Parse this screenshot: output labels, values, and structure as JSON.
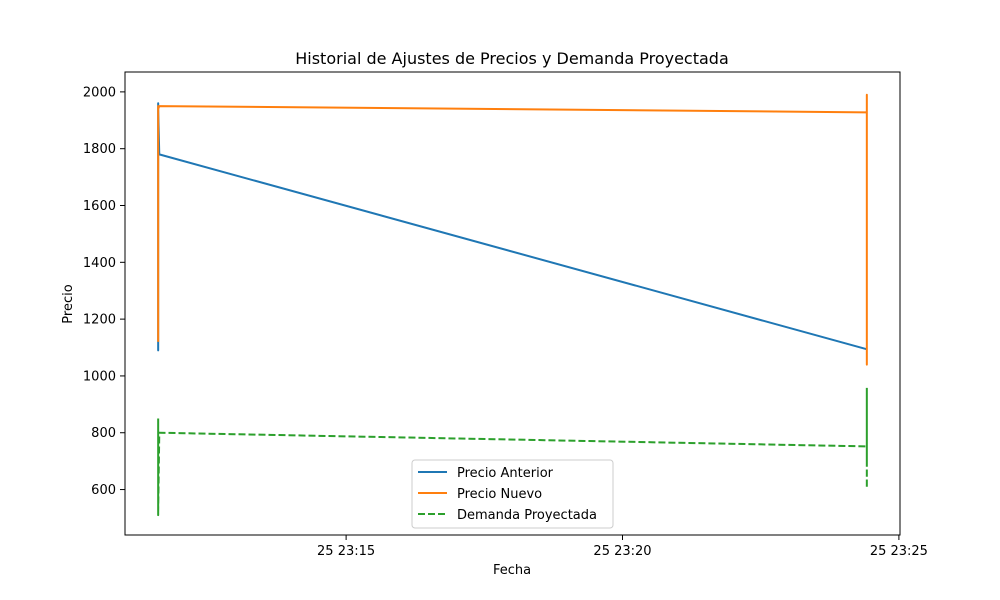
{
  "chart_data": {
    "type": "line",
    "title": "Historial de Ajustes de Precios y Demanda Proyectada",
    "xlabel": "Fecha",
    "ylabel": "Precio",
    "x_ticks": [
      {
        "minutes": 15,
        "label": "25 23:15"
      },
      {
        "minutes": 20,
        "label": "25 23:20"
      },
      {
        "minutes": 25,
        "label": "25 23:25"
      }
    ],
    "y_ticks": [
      600,
      800,
      1000,
      1200,
      1400,
      1600,
      1800,
      2000
    ],
    "xlim": [
      11.0,
      25.02
    ],
    "ylim": [
      440,
      2070
    ],
    "grid": false,
    "legend_position": "lower-center",
    "series": [
      {
        "name": "Precio Anterior",
        "color": "#1f77b4",
        "dash": "solid",
        "points": [
          [
            11.6,
            1100
          ],
          [
            11.6,
            1960
          ],
          [
            11.6,
            1090
          ],
          [
            11.6,
            1940
          ],
          [
            11.62,
            1780
          ],
          [
            24.4,
            1095
          ],
          [
            24.42,
            1095
          ]
        ]
      },
      {
        "name": "Precio Nuevo",
        "color": "#ff7f0e",
        "dash": "solid",
        "points": [
          [
            11.6,
            1120
          ],
          [
            11.6,
            1950
          ],
          [
            11.6,
            1130
          ],
          [
            11.6,
            1940
          ],
          [
            11.62,
            1950
          ],
          [
            24.4,
            1928
          ],
          [
            24.42,
            1930
          ],
          [
            24.42,
            1990
          ],
          [
            24.42,
            1040
          ],
          [
            24.42,
            1985
          ],
          [
            24.42,
            1930
          ]
        ]
      },
      {
        "name": "Demanda Proyectada",
        "color": "#2ca02c",
        "dash": "dashed",
        "points": [
          [
            11.6,
            850
          ],
          [
            11.6,
            510
          ],
          [
            11.6,
            840
          ],
          [
            11.6,
            520
          ],
          [
            11.62,
            800
          ],
          [
            24.4,
            752
          ],
          [
            24.42,
            752
          ],
          [
            24.42,
            960
          ],
          [
            24.42,
            605
          ],
          [
            24.42,
            950
          ],
          [
            24.42,
            700
          ],
          [
            24.42,
            755
          ]
        ]
      }
    ]
  }
}
